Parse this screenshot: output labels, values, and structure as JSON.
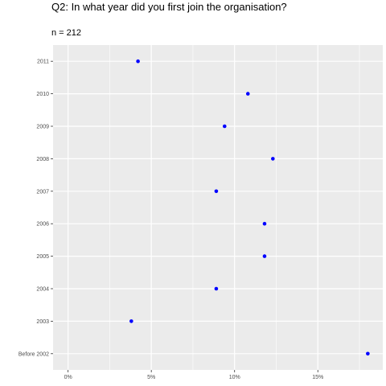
{
  "chart_data": {
    "type": "scatter",
    "title": "Q2: In what year did you first join the organisation?",
    "subtitle": "n = 212",
    "xlabel": "",
    "ylabel": "",
    "categories": [
      "Before 2002",
      "2003",
      "2004",
      "2005",
      "2006",
      "2007",
      "2008",
      "2009",
      "2010",
      "2011"
    ],
    "values": [
      0.18,
      0.038,
      0.089,
      0.118,
      0.118,
      0.089,
      0.123,
      0.094,
      0.108,
      0.042
    ],
    "x_ticks": [
      0,
      0.05,
      0.1,
      0.15
    ],
    "x_tick_labels": [
      "0%",
      "5%",
      "10%",
      "15%"
    ],
    "xlim": [
      -0.009,
      0.189
    ],
    "grid": true,
    "point_color": "#0000ff",
    "panel_background": "#ebebeb",
    "grid_color": "#ffffff"
  }
}
